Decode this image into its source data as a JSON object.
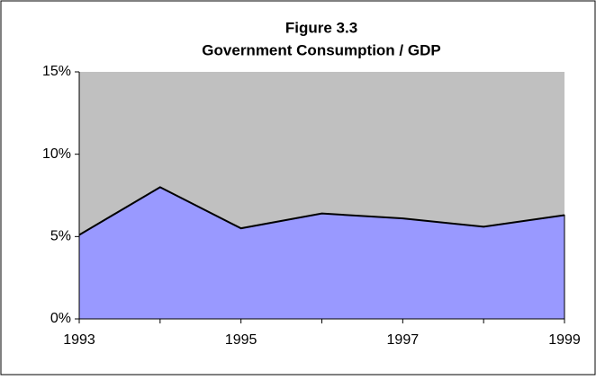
{
  "chart_data": {
    "type": "area",
    "title": "Figure 3.3",
    "subtitle": "Government Consumption / GDP",
    "categories": [
      "1993",
      null,
      "1995",
      null,
      "1997",
      null,
      "1999"
    ],
    "values": [
      5.1,
      8.0,
      5.5,
      6.4,
      6.1,
      5.6,
      6.3
    ],
    "color": "#9999ff",
    "line_color": "#000000",
    "plot_background": "#c0c0c0",
    "ylim": [
      0,
      15
    ],
    "yticks": [
      {
        "value": 0,
        "label": "0%"
      },
      {
        "value": 5,
        "label": "5%"
      },
      {
        "value": 10,
        "label": "10%"
      },
      {
        "value": 15,
        "label": "15%"
      }
    ]
  }
}
